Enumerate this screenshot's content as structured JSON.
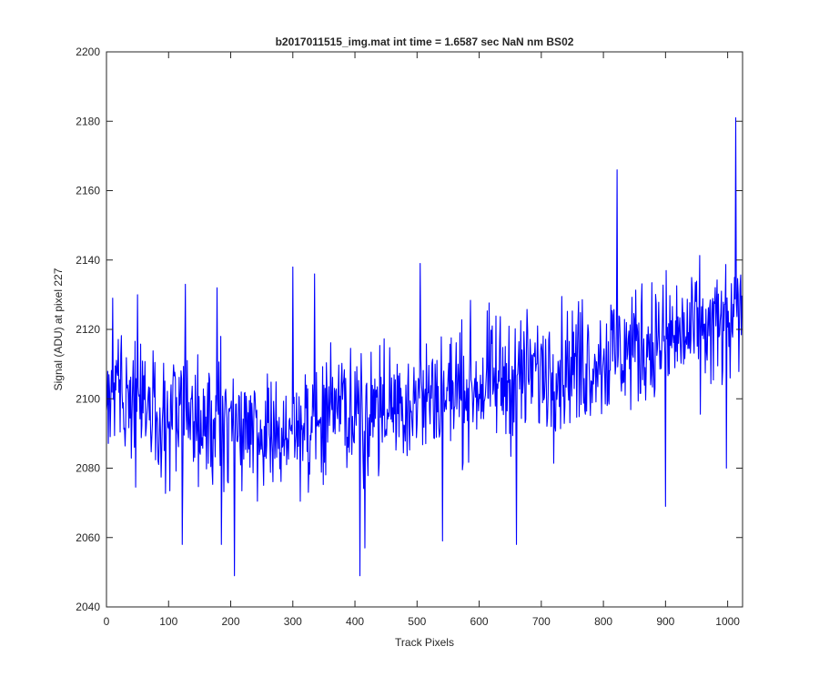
{
  "chart_data": {
    "type": "line",
    "title": "b2017011515_img.mat int time = 1.6587 sec  NaN nm BS02",
    "xlabel": "Track Pixels",
    "ylabel": "Signal (ADU) at pixel 227",
    "xlim": [
      0,
      1024
    ],
    "ylim": [
      2040,
      2200
    ],
    "xticks": [
      0,
      100,
      200,
      300,
      400,
      500,
      600,
      700,
      800,
      900,
      1000
    ],
    "yticks": [
      2040,
      2060,
      2080,
      2100,
      2120,
      2140,
      2160,
      2180,
      2200
    ],
    "grid": false,
    "legend": "none",
    "series": [
      {
        "color": "#0000ff",
        "trend": [
          [
            0,
            2100
          ],
          [
            50,
            2098
          ],
          [
            100,
            2095
          ],
          [
            150,
            2092
          ],
          [
            200,
            2090
          ],
          [
            250,
            2090
          ],
          [
            300,
            2092
          ],
          [
            350,
            2094
          ],
          [
            400,
            2096
          ],
          [
            450,
            2098
          ],
          [
            500,
            2100
          ],
          [
            550,
            2102
          ],
          [
            600,
            2104
          ],
          [
            650,
            2106
          ],
          [
            700,
            2108
          ],
          [
            750,
            2110
          ],
          [
            800,
            2112
          ],
          [
            850,
            2115
          ],
          [
            900,
            2117
          ],
          [
            950,
            2119
          ],
          [
            1000,
            2121
          ],
          [
            1024,
            2122
          ]
        ],
        "noise_amplitude": 9,
        "n_points": 1024,
        "notable_points": [
          [
            10,
            2129
          ],
          [
            50,
            2130
          ],
          [
            122,
            2058
          ],
          [
            127,
            2133
          ],
          [
            178,
            2132
          ],
          [
            185,
            2058
          ],
          [
            206,
            2049
          ],
          [
            300,
            2138
          ],
          [
            335,
            2136
          ],
          [
            408,
            2049
          ],
          [
            416,
            2057
          ],
          [
            505,
            2139
          ],
          [
            541,
            2059
          ],
          [
            660,
            2058
          ],
          [
            822,
            2166
          ],
          [
            900,
            2069
          ],
          [
            998,
            2080
          ],
          [
            1013,
            2181
          ]
        ]
      }
    ]
  }
}
